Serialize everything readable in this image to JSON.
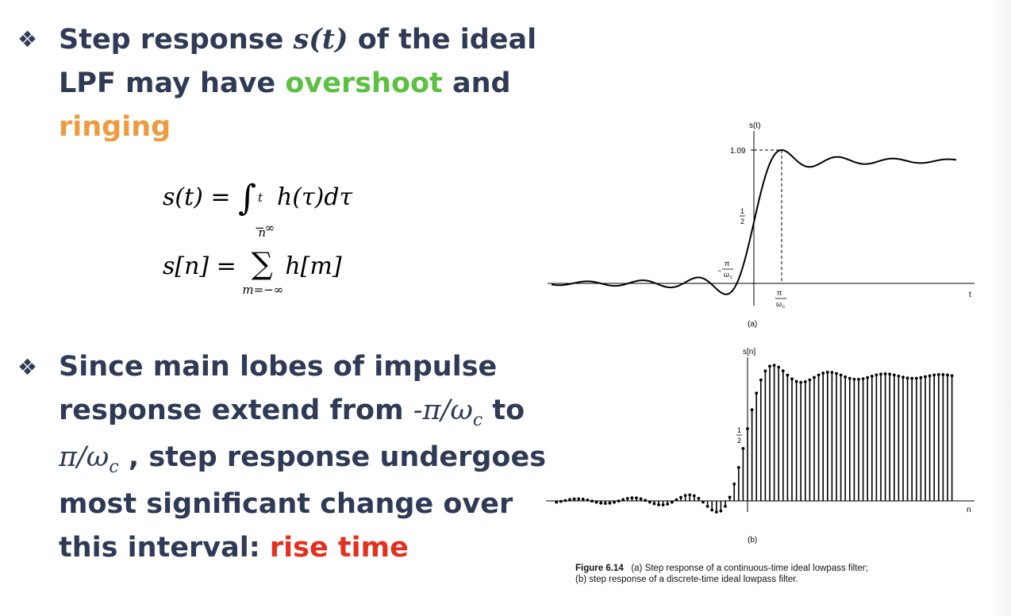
{
  "bullet1": {
    "icon": "diamond-bullet-icon",
    "text_a": "Step response ",
    "sym_s": "s(t)",
    "text_b": " of the ideal",
    "text_c": "LPF may have ",
    "overshoot": "overshoot",
    "text_and": " and",
    "ringing": "ringing"
  },
  "equations": {
    "eq1_lhs": "s(t) = ",
    "eq1_int": "∫",
    "eq1_upper": "t",
    "eq1_lower": "−∞",
    "eq1_rhs": "h(τ)dτ",
    "eq2_lhs": "s[n] = ",
    "eq2_sum": "∑",
    "eq2_upper": "n",
    "eq2_lower": "m=−∞",
    "eq2_rhs": "h[m]"
  },
  "bullet2": {
    "icon": "diamond-bullet-icon",
    "line1": "Since main lobes of impulse",
    "line2a": "response extend from ",
    "neg_pi_over": "-π/ω",
    "sub_c": "c",
    "line2b": " to",
    "pi_over": "π/ω",
    "line3b": " , step response undergoes",
    "line4": "most significant change over",
    "line5a": "this interval: ",
    "rise_time": "rise time"
  },
  "figure": {
    "a_ylabel": "s(t)",
    "a_peak": "1.09",
    "a_half": "1/2",
    "a_neg_tick_num": "π",
    "a_neg_tick_den": "ω",
    "a_neg_sign": "−",
    "a_pos_tick_num": "π",
    "a_pos_tick_den": "ω",
    "a_xlabel": "t",
    "a_tag": "(a)",
    "b_ylabel": "s[n]",
    "b_half": "1/2",
    "b_xlabel": "n",
    "b_tag": "(b)"
  },
  "caption": {
    "head": "Figure 6.14",
    "line1": "(a) Step response of a continuous-time ideal lowpass filter;",
    "line2": "(b) step response of a discrete-time ideal lowpass filter."
  }
}
